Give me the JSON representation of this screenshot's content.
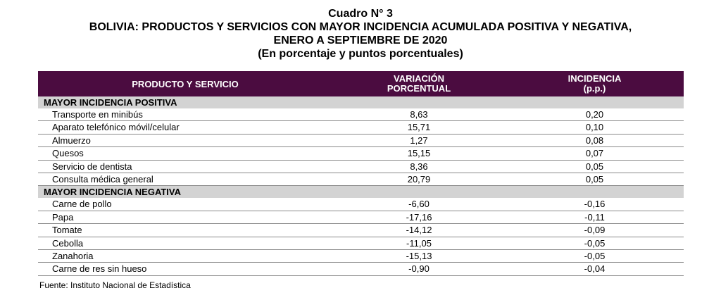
{
  "title": {
    "line1": "Cuadro N° 3",
    "line2": "BOLIVIA: PRODUCTOS Y SERVICIOS CON MAYOR INCIDENCIA ACUMULADA POSITIVA Y NEGATIVA,",
    "line3": "ENERO A SEPTIEMBRE DE 2020",
    "line4": "(En porcentaje y puntos porcentuales)"
  },
  "header": {
    "col1": "PRODUCTO Y SERVICIO",
    "col2_line1": "VARIACIÓN",
    "col2_line2": "PORCENTUAL",
    "col3_line1": "INCIDENCIA",
    "col3_line2": "(p.p.)"
  },
  "sections": [
    {
      "label": "MAYOR INCIDENCIA POSITIVA",
      "rows": [
        {
          "product": "Transporte en minibús",
          "variation": "8,63",
          "incidence": "0,20"
        },
        {
          "product": "Aparato telefónico móvil/celular",
          "variation": "15,71",
          "incidence": "0,10"
        },
        {
          "product": "Almuerzo",
          "variation": "1,27",
          "incidence": "0,08"
        },
        {
          "product": "Quesos",
          "variation": "15,15",
          "incidence": "0,07"
        },
        {
          "product": "Servicio de dentista",
          "variation": "8,36",
          "incidence": "0,05"
        },
        {
          "product": "Consulta médica general",
          "variation": "20,79",
          "incidence": "0,05"
        }
      ]
    },
    {
      "label": "MAYOR INCIDENCIA NEGATIVA",
      "rows": [
        {
          "product": "Carne de pollo",
          "variation": "-6,60",
          "incidence": "-0,16"
        },
        {
          "product": "Papa",
          "variation": "-17,16",
          "incidence": "-0,11"
        },
        {
          "product": "Tomate",
          "variation": "-14,12",
          "incidence": "-0,09"
        },
        {
          "product": "Cebolla",
          "variation": "-11,05",
          "incidence": "-0,05"
        },
        {
          "product": "Zanahoria",
          "variation": "-15,13",
          "incidence": "-0,05"
        },
        {
          "product": "Carne de res sin hueso",
          "variation": "-0,90",
          "incidence": "-0,04"
        }
      ]
    }
  ],
  "source": "Fuente: Instituto Nacional de Estadística",
  "colors": {
    "header_bg": "#4b0c40",
    "section_bg": "#d3d3d3"
  }
}
